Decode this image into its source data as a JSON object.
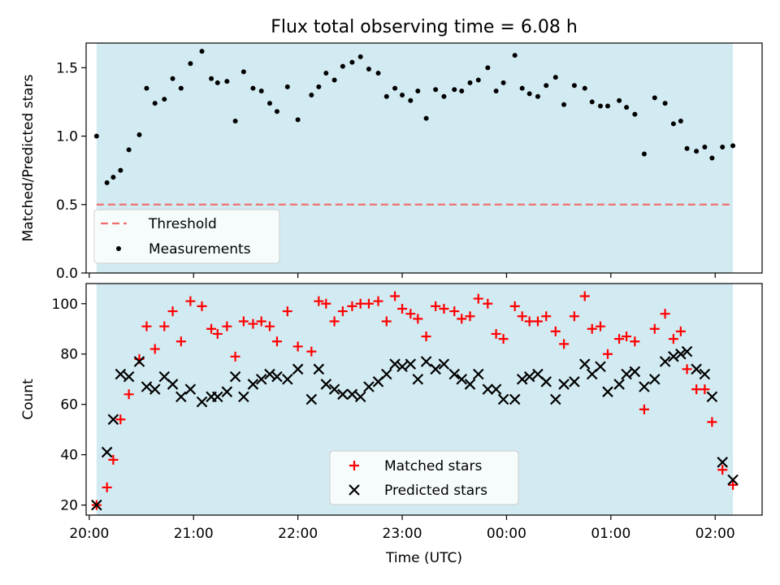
{
  "chart_data": [
    {
      "type": "scatter",
      "title": "Flux total observing time = 6.08 h",
      "xlabel": "",
      "ylabel": "Matched/Predicted stars",
      "ylim": [
        0,
        1.68
      ],
      "yticks": [
        "0.0",
        "0.5",
        "1.0",
        "1.5"
      ],
      "threshold": 0.5,
      "legend": {
        "position": "lower-left",
        "entries": [
          "Threshold",
          "Measurements"
        ]
      },
      "series": [
        {
          "name": "Measurements",
          "x": [
            20.07,
            20.17,
            20.23,
            20.3,
            20.38,
            20.48,
            20.55,
            20.63,
            20.72,
            20.8,
            20.88,
            20.97,
            21.08,
            21.17,
            21.23,
            21.32,
            21.4,
            21.48,
            21.57,
            21.65,
            21.73,
            21.8,
            21.9,
            22.0,
            22.13,
            22.2,
            22.27,
            22.35,
            22.43,
            22.52,
            22.6,
            22.68,
            22.77,
            22.85,
            22.93,
            23.0,
            23.08,
            23.15,
            23.23,
            23.32,
            23.4,
            23.5,
            23.57,
            23.65,
            23.73,
            23.82,
            23.9,
            23.97,
            24.08,
            24.15,
            24.22,
            24.3,
            24.38,
            24.47,
            24.55,
            24.65,
            24.75,
            24.82,
            24.9,
            24.97,
            25.08,
            25.15,
            25.23,
            25.32,
            25.42,
            25.52,
            25.6,
            25.67,
            25.73,
            25.82,
            25.9,
            25.97,
            26.07,
            26.17
          ],
          "y": [
            1.0,
            0.66,
            0.7,
            0.75,
            0.9,
            1.01,
            1.35,
            1.24,
            1.27,
            1.42,
            1.35,
            1.53,
            1.62,
            1.42,
            1.39,
            1.4,
            1.11,
            1.47,
            1.35,
            1.33,
            1.24,
            1.18,
            1.36,
            1.12,
            1.3,
            1.36,
            1.46,
            1.41,
            1.51,
            1.54,
            1.58,
            1.49,
            1.46,
            1.29,
            1.35,
            1.3,
            1.26,
            1.33,
            1.13,
            1.34,
            1.29,
            1.34,
            1.33,
            1.39,
            1.41,
            1.5,
            1.33,
            1.39,
            1.59,
            1.35,
            1.31,
            1.29,
            1.37,
            1.43,
            1.23,
            1.37,
            1.35,
            1.25,
            1.22,
            1.22,
            1.26,
            1.21,
            1.16,
            0.87,
            1.28,
            1.24,
            1.09,
            1.11,
            0.91,
            0.89,
            0.92,
            0.84,
            0.92,
            0.93
          ]
        }
      ]
    },
    {
      "type": "scatter",
      "title": "",
      "xlabel": "Time (UTC)",
      "ylabel": "Count",
      "xlim": [
        19.97,
        26.45
      ],
      "ylim": [
        16,
        108
      ],
      "xticks": [
        "20:00",
        "21:00",
        "22:00",
        "23:00",
        "00:00",
        "01:00",
        "02:00"
      ],
      "yticks": [
        "20",
        "40",
        "60",
        "80",
        "100"
      ],
      "legend": {
        "position": "lower-center",
        "entries": [
          "Matched stars",
          "Predicted stars"
        ]
      },
      "series": [
        {
          "name": "Matched stars",
          "x": [
            20.07,
            20.17,
            20.23,
            20.3,
            20.38,
            20.48,
            20.55,
            20.63,
            20.72,
            20.8,
            20.88,
            20.97,
            21.08,
            21.17,
            21.23,
            21.32,
            21.4,
            21.48,
            21.57,
            21.65,
            21.73,
            21.8,
            21.9,
            22.0,
            22.13,
            22.2,
            22.27,
            22.35,
            22.43,
            22.52,
            22.6,
            22.68,
            22.77,
            22.85,
            22.93,
            23.0,
            23.08,
            23.15,
            23.23,
            23.32,
            23.4,
            23.5,
            23.57,
            23.65,
            23.73,
            23.82,
            23.9,
            23.97,
            24.08,
            24.15,
            24.22,
            24.3,
            24.38,
            24.47,
            24.55,
            24.65,
            24.75,
            24.82,
            24.9,
            24.97,
            25.08,
            25.15,
            25.23,
            25.32,
            25.42,
            25.52,
            25.6,
            25.67,
            25.73,
            25.82,
            25.9,
            25.97,
            26.07,
            26.17
          ],
          "y": [
            20,
            27,
            38,
            54,
            64,
            78,
            91,
            82,
            91,
            97,
            85,
            101,
            99,
            90,
            88,
            91,
            79,
            93,
            92,
            93,
            91,
            85,
            97,
            83,
            81,
            101,
            100,
            93,
            97,
            99,
            100,
            100,
            101,
            93,
            103,
            98,
            96,
            94,
            87,
            99,
            98,
            97,
            94,
            95,
            102,
            100,
            88,
            86,
            99,
            95,
            93,
            93,
            95,
            89,
            84,
            95,
            103,
            90,
            91,
            80,
            86,
            87,
            85,
            58,
            90,
            96,
            86,
            89,
            74,
            66,
            66,
            53,
            34,
            28
          ]
        },
        {
          "name": "Predicted stars",
          "x": [
            20.07,
            20.17,
            20.23,
            20.3,
            20.38,
            20.48,
            20.55,
            20.63,
            20.72,
            20.8,
            20.88,
            20.97,
            21.08,
            21.17,
            21.23,
            21.32,
            21.4,
            21.48,
            21.57,
            21.65,
            21.73,
            21.8,
            21.9,
            22.0,
            22.13,
            22.2,
            22.27,
            22.35,
            22.43,
            22.52,
            22.6,
            22.68,
            22.77,
            22.85,
            22.93,
            23.0,
            23.08,
            23.15,
            23.23,
            23.32,
            23.4,
            23.5,
            23.57,
            23.65,
            23.73,
            23.82,
            23.9,
            23.97,
            24.08,
            24.15,
            24.22,
            24.3,
            24.38,
            24.47,
            24.55,
            24.65,
            24.75,
            24.82,
            24.9,
            24.97,
            25.08,
            25.15,
            25.23,
            25.32,
            25.42,
            25.52,
            25.6,
            25.67,
            25.73,
            25.82,
            25.9,
            25.97,
            26.07,
            26.17
          ],
          "y": [
            20,
            41,
            54,
            72,
            71,
            77,
            67,
            66,
            71,
            68,
            63,
            66,
            61,
            63,
            63,
            65,
            71,
            63,
            68,
            70,
            72,
            71,
            70,
            74,
            62,
            74,
            68,
            66,
            64,
            64,
            63,
            67,
            69,
            72,
            76,
            75,
            76,
            70,
            77,
            74,
            76,
            72,
            70,
            68,
            72,
            66,
            66,
            62,
            62,
            70,
            71,
            72,
            69,
            62,
            68,
            69,
            76,
            72,
            75,
            65,
            68,
            72,
            73,
            67,
            70,
            77,
            79,
            80,
            81,
            74,
            72,
            63,
            37,
            30
          ]
        }
      ]
    }
  ]
}
